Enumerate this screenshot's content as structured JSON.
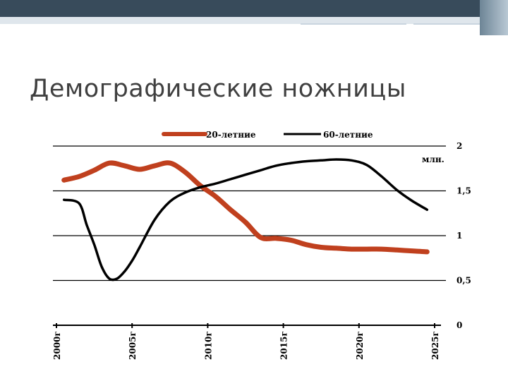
{
  "slide": {
    "title": "Демографические ножницы"
  },
  "colors": {
    "header_dark": "#384b5b",
    "header_light": "#dfe6ec",
    "series_20": "#c0401e",
    "series_60": "#000000",
    "title_text": "#404040"
  },
  "chart_data": {
    "type": "line",
    "title": "",
    "xlabel": "",
    "ylabel": "млн.",
    "x_ticks": [
      "2000г",
      "2005г",
      "2010г",
      "2015г",
      "2020г",
      "2025г"
    ],
    "y_ticks": [
      "0",
      "0,5",
      "1",
      "1,5",
      "2"
    ],
    "xlim": [
      2000,
      2025
    ],
    "ylim": [
      0,
      2
    ],
    "grid": true,
    "legend_position": "top",
    "series": [
      {
        "name": "20-летние",
        "color": "#c0401e",
        "x": [
          2000.5,
          2001.5,
          2002.5,
          2003.5,
          2004.5,
          2005.5,
          2006.5,
          2007.5,
          2008.5,
          2009.5,
          2010.5,
          2011.5,
          2012.5,
          2013.5,
          2014.5,
          2015.5,
          2016.5,
          2017.5,
          2018.5,
          2019.5,
          2020.5,
          2021.5,
          2022.5,
          2023.5,
          2024.5
        ],
        "values": [
          1.62,
          1.66,
          1.73,
          1.81,
          1.78,
          1.74,
          1.78,
          1.81,
          1.71,
          1.56,
          1.44,
          1.29,
          1.15,
          0.98,
          0.97,
          0.95,
          0.9,
          0.87,
          0.86,
          0.85,
          0.85,
          0.85,
          0.84,
          0.83,
          0.82
        ]
      },
      {
        "name": "60-летние",
        "color": "#000000",
        "x": [
          2000.5,
          2001.5,
          2002.0,
          2002.5,
          2003.0,
          2003.5,
          2004.0,
          2004.5,
          2005.0,
          2005.5,
          2006.5,
          2007.5,
          2008.5,
          2009.5,
          2010.5,
          2011.5,
          2012.5,
          2013.5,
          2014.5,
          2015.5,
          2016.5,
          2017.5,
          2018.5,
          2019.5,
          2020.5,
          2021.5,
          2022.5,
          2023.5,
          2024.5
        ],
        "values": [
          1.4,
          1.36,
          1.12,
          0.9,
          0.65,
          0.52,
          0.52,
          0.6,
          0.72,
          0.87,
          1.18,
          1.38,
          1.48,
          1.54,
          1.58,
          1.63,
          1.68,
          1.73,
          1.78,
          1.81,
          1.83,
          1.84,
          1.85,
          1.84,
          1.79,
          1.66,
          1.51,
          1.39,
          1.29
        ]
      }
    ]
  }
}
